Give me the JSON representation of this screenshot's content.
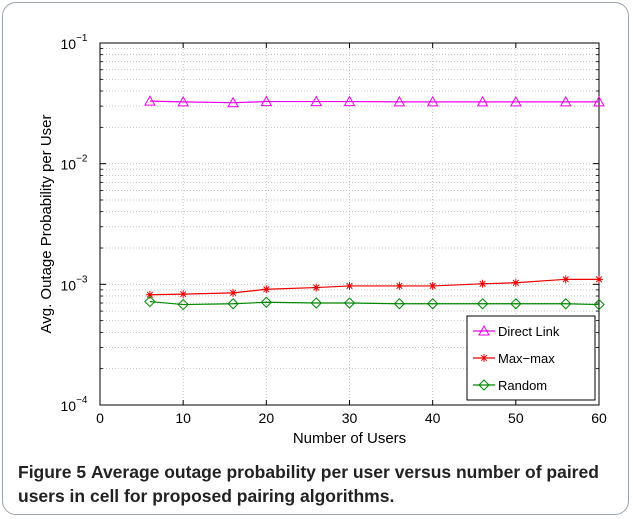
{
  "chart_data": {
    "type": "line",
    "xlabel": "Number of Users",
    "ylabel": "Avg. Outage Probability per User",
    "xlim": [
      0,
      60
    ],
    "ylim": [
      0.0001,
      0.1
    ],
    "yscale": "log",
    "xticks": [
      "0",
      "10",
      "20",
      "30",
      "40",
      "50",
      "60"
    ],
    "yticks": [
      {
        "base": "10",
        "exp": "−4"
      },
      {
        "base": "10",
        "exp": "−3"
      },
      {
        "base": "10",
        "exp": "−2"
      },
      {
        "base": "10",
        "exp": "−1"
      }
    ],
    "grid": true,
    "legend_position": "bottom-right",
    "x": [
      6,
      10,
      16,
      20,
      26,
      30,
      36,
      40,
      46,
      50,
      56,
      60
    ],
    "series": [
      {
        "name": "Direct Link",
        "color": "#ee00ee",
        "marker": "triangle",
        "values": [
          0.033,
          0.0325,
          0.032,
          0.0327,
          0.0327,
          0.0327,
          0.0325,
          0.0325,
          0.0325,
          0.0325,
          0.0325,
          0.0325
        ]
      },
      {
        "name": "Max−max",
        "color": "#ee0000",
        "marker": "star",
        "values": [
          0.00082,
          0.00083,
          0.00085,
          0.00091,
          0.00094,
          0.00097,
          0.00097,
          0.00097,
          0.00101,
          0.00103,
          0.0011,
          0.0011
        ]
      },
      {
        "name": "Random",
        "color": "#008800",
        "marker": "diamond",
        "values": [
          0.00072,
          0.00068,
          0.00069,
          0.00071,
          0.0007,
          0.0007,
          0.00069,
          0.00069,
          0.00069,
          0.00069,
          0.00069,
          0.00068
        ]
      }
    ]
  },
  "caption": {
    "label": "Figure 5",
    "text": "Average outage probability per user versus number of paired users in cell for proposed pairing algorithms."
  }
}
